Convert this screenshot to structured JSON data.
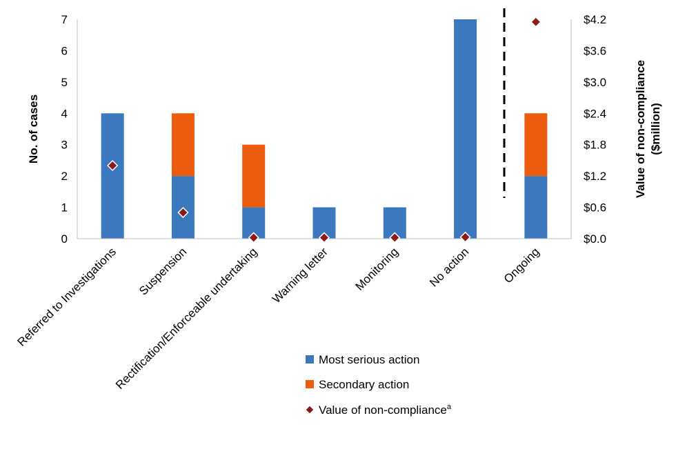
{
  "chart_data": {
    "type": "bar",
    "stacked": true,
    "categories": [
      "Referred to Investigations",
      "Suspension",
      "Rectification/Enforceable undertaking",
      "Warning letter",
      "Monitoring",
      "No action",
      "Ongoing"
    ],
    "series": [
      {
        "name": "Most serious action",
        "type": "bar",
        "axis": "left",
        "color": "#3B78BE",
        "values": [
          4,
          2,
          1,
          1,
          1,
          7,
          2
        ]
      },
      {
        "name": "Secondary action",
        "type": "bar",
        "axis": "left",
        "color": "#EB5C0F",
        "values": [
          0,
          2,
          2,
          0,
          0,
          0,
          2
        ]
      },
      {
        "name": "Value of non-compliance",
        "name_superscript": "a",
        "type": "scatter",
        "axis": "right",
        "marker": "diamond",
        "color": "#8B1A1A",
        "values": [
          1.4,
          0.5,
          0.02,
          0.02,
          0.02,
          0.03,
          4.15
        ]
      }
    ],
    "ylabel": "No. of cases",
    "ylim": [
      0,
      7
    ],
    "yticks": [
      "0",
      "1",
      "2",
      "3",
      "4",
      "5",
      "6",
      "7"
    ],
    "y2label_line1": "Value of non-compliance",
    "y2label_line2": "($million)",
    "y2lim": [
      0,
      4.2
    ],
    "y2ticks": [
      "$0.0",
      "$0.6",
      "$1.2",
      "$1.8",
      "$2.4",
      "$3.0",
      "$3.6",
      "$4.2"
    ],
    "annotations": [
      {
        "type": "dashed-vertical-line",
        "between": [
          "No action",
          "Ongoing"
        ]
      }
    ],
    "grid": false,
    "legend": "bottom"
  }
}
